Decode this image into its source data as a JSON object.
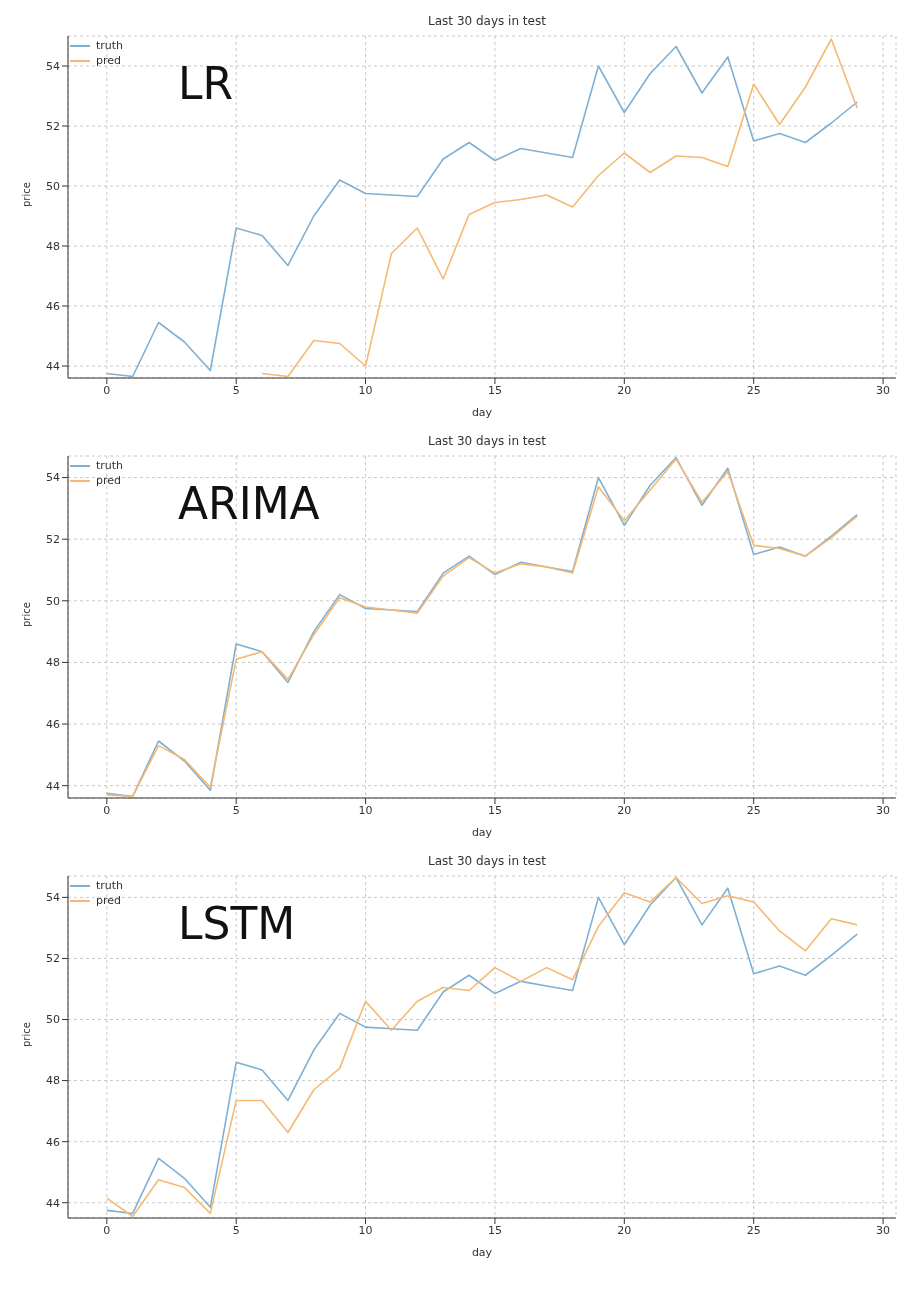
{
  "chart_data": [
    {
      "type": "line",
      "title": "Last 30 days in test",
      "xlabel": "day",
      "ylabel": "price",
      "annotations": [
        "LR"
      ],
      "legend": "top left",
      "grid": true,
      "xlim": [
        -1.5,
        30.5
      ],
      "ylim": [
        43.6,
        55.0
      ],
      "xticks": [
        0,
        5,
        10,
        15,
        20,
        25,
        30
      ],
      "yticks": [
        44,
        46,
        48,
        50,
        52,
        54
      ],
      "x": [
        0,
        1,
        2,
        3,
        4,
        5,
        6,
        7,
        8,
        9,
        10,
        11,
        12,
        13,
        14,
        15,
        16,
        17,
        18,
        19,
        20,
        21,
        22,
        23,
        24,
        25,
        26,
        27,
        28,
        29
      ],
      "series": [
        {
          "name": "truth",
          "color": "#7eb0d5",
          "values": [
            43.75,
            43.65,
            45.45,
            44.8,
            43.85,
            48.6,
            48.35,
            47.35,
            49.0,
            50.2,
            49.75,
            49.7,
            49.65,
            50.9,
            51.45,
            50.85,
            51.25,
            51.1,
            50.95,
            54.0,
            52.45,
            53.75,
            54.65,
            53.1,
            54.3,
            51.5,
            51.75,
            51.45,
            52.1,
            52.8
          ]
        },
        {
          "name": "pred",
          "color": "#f5b971",
          "values": [
            null,
            null,
            null,
            null,
            null,
            null,
            43.75,
            43.65,
            44.85,
            44.75,
            44.0,
            47.75,
            48.6,
            46.9,
            49.05,
            49.45,
            49.55,
            49.7,
            49.3,
            50.35,
            51.1,
            50.45,
            51.0,
            50.95,
            50.65,
            53.4,
            52.05,
            53.3,
            54.9,
            52.6
          ]
        }
      ]
    },
    {
      "type": "line",
      "title": "Last 30 days in test",
      "xlabel": "day",
      "ylabel": "price",
      "annotations": [
        "ARIMA"
      ],
      "legend": "top left",
      "grid": true,
      "xlim": [
        -1.5,
        30.5
      ],
      "ylim": [
        43.6,
        54.7
      ],
      "xticks": [
        0,
        5,
        10,
        15,
        20,
        25,
        30
      ],
      "yticks": [
        44,
        46,
        48,
        50,
        52,
        54
      ],
      "x": [
        0,
        1,
        2,
        3,
        4,
        5,
        6,
        7,
        8,
        9,
        10,
        11,
        12,
        13,
        14,
        15,
        16,
        17,
        18,
        19,
        20,
        21,
        22,
        23,
        24,
        25,
        26,
        27,
        28,
        29
      ],
      "series": [
        {
          "name": "truth",
          "color": "#7eb0d5",
          "values": [
            43.75,
            43.65,
            45.45,
            44.8,
            43.85,
            48.6,
            48.35,
            47.35,
            49.0,
            50.2,
            49.75,
            49.7,
            49.65,
            50.9,
            51.45,
            50.85,
            51.25,
            51.1,
            50.95,
            54.0,
            52.45,
            53.75,
            54.65,
            53.1,
            54.3,
            51.5,
            51.75,
            51.45,
            52.1,
            52.8
          ]
        },
        {
          "name": "pred",
          "color": "#f5b971",
          "values": [
            43.7,
            43.65,
            45.3,
            44.85,
            43.95,
            48.1,
            48.35,
            47.45,
            48.9,
            50.1,
            49.8,
            49.7,
            49.6,
            50.8,
            51.4,
            50.9,
            51.2,
            51.1,
            50.9,
            53.7,
            52.6,
            53.6,
            54.6,
            53.2,
            54.2,
            51.8,
            51.7,
            51.45,
            52.05,
            52.75
          ]
        }
      ]
    },
    {
      "type": "line",
      "title": "Last 30 days in test",
      "xlabel": "day",
      "ylabel": "price",
      "annotations": [
        "LSTM"
      ],
      "legend": "top left",
      "grid": true,
      "xlim": [
        -1.5,
        30.5
      ],
      "ylim": [
        43.5,
        54.7
      ],
      "xticks": [
        0,
        5,
        10,
        15,
        20,
        25,
        30
      ],
      "yticks": [
        44,
        46,
        48,
        50,
        52,
        54
      ],
      "x": [
        0,
        1,
        2,
        3,
        4,
        5,
        6,
        7,
        8,
        9,
        10,
        11,
        12,
        13,
        14,
        15,
        16,
        17,
        18,
        19,
        20,
        21,
        22,
        23,
        24,
        25,
        26,
        27,
        28,
        29
      ],
      "series": [
        {
          "name": "truth",
          "color": "#7eb0d5",
          "values": [
            43.75,
            43.65,
            45.45,
            44.8,
            43.85,
            48.6,
            48.35,
            47.35,
            49.0,
            50.2,
            49.75,
            49.7,
            49.65,
            50.9,
            51.45,
            50.85,
            51.25,
            51.1,
            50.95,
            54.0,
            52.45,
            53.75,
            54.65,
            53.1,
            54.3,
            51.5,
            51.75,
            51.45,
            52.1,
            52.8
          ]
        },
        {
          "name": "pred",
          "color": "#f5b971",
          "values": [
            44.15,
            43.55,
            44.75,
            44.5,
            43.65,
            47.35,
            47.35,
            46.3,
            47.7,
            48.4,
            50.6,
            49.65,
            50.6,
            51.05,
            50.95,
            51.7,
            51.25,
            51.7,
            51.3,
            53.05,
            54.15,
            53.85,
            54.65,
            53.8,
            54.05,
            53.85,
            52.9,
            52.25,
            53.3,
            53.1
          ]
        }
      ]
    }
  ]
}
